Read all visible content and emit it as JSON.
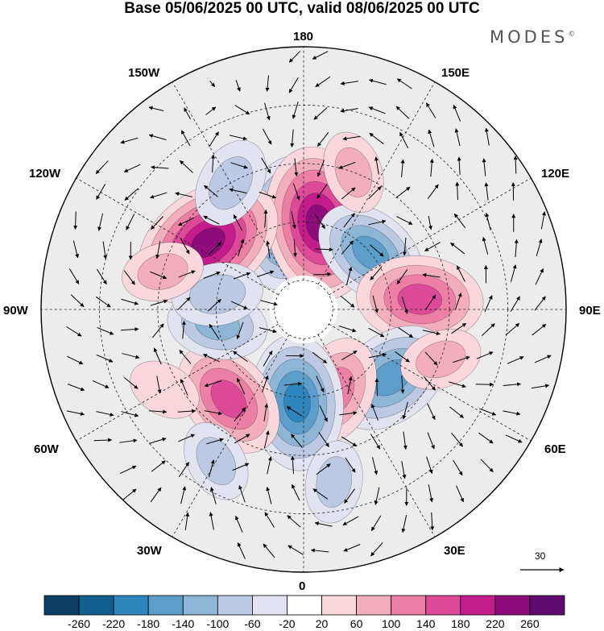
{
  "title": "Base 05/06/2025 00 UTC, valid 08/06/2025 00 UTC",
  "brand": {
    "text": "MODES",
    "mark": "©"
  },
  "longitude_labels": {
    "top": "180",
    "bottom": "0",
    "left": "90W",
    "right": "90E",
    "top_left_1": "150W",
    "top_left_2": "120W",
    "bottom_left_1": "60W",
    "bottom_left_2": "30W",
    "top_right_1": "150E",
    "top_right_2": "120E",
    "bottom_right_1": "60E",
    "bottom_right_2": "30E"
  },
  "vector_scale": {
    "value": "30"
  },
  "colorbar": {
    "labels": [
      "-260",
      "-220",
      "-180",
      "-140",
      "-100",
      "-60",
      "-20",
      "20",
      "60",
      "100",
      "140",
      "180",
      "220",
      "260"
    ],
    "colors": [
      "#0a3f63",
      "#115f8f",
      "#2e86bd",
      "#5c9ec9",
      "#8db5d6",
      "#bcc9e2",
      "#e2e3f0",
      "#ffffff",
      "#f9d7dc",
      "#f3aebe",
      "#ec7fa6",
      "#dd4a97",
      "#c21d8a",
      "#8e0c7c",
      "#5e0a6e"
    ]
  },
  "anomaly_blobs": [
    {
      "lon": -170,
      "lat": 60,
      "value": -180
    },
    {
      "lon": 170,
      "lat": 60,
      "value": 220
    },
    {
      "lon": -125,
      "lat": 50,
      "value": 220
    },
    {
      "lon": 130,
      "lat": 60,
      "value": -140
    },
    {
      "lon": 95,
      "lat": 50,
      "value": 160
    },
    {
      "lon": 52,
      "lat": 52,
      "value": -160
    },
    {
      "lon": 22,
      "lat": 60,
      "value": 120
    },
    {
      "lon": -4,
      "lat": 58,
      "value": -180
    },
    {
      "lon": -40,
      "lat": 50,
      "value": 150
    },
    {
      "lon": -80,
      "lat": 60,
      "value": -100
    },
    {
      "lon": -100,
      "lat": 60,
      "value": -80
    },
    {
      "lon": -150,
      "lat": 40,
      "value": -80
    },
    {
      "lon": -105,
      "lat": 40,
      "value": 60
    },
    {
      "lon": 160,
      "lat": 40,
      "value": 60
    },
    {
      "lon": -30,
      "lat": 30,
      "value": -60
    },
    {
      "lon": 10,
      "lat": 30,
      "value": -60
    },
    {
      "lon": 70,
      "lat": 40,
      "value": 60
    },
    {
      "lon": -60,
      "lat": 35,
      "value": 40
    }
  ]
}
